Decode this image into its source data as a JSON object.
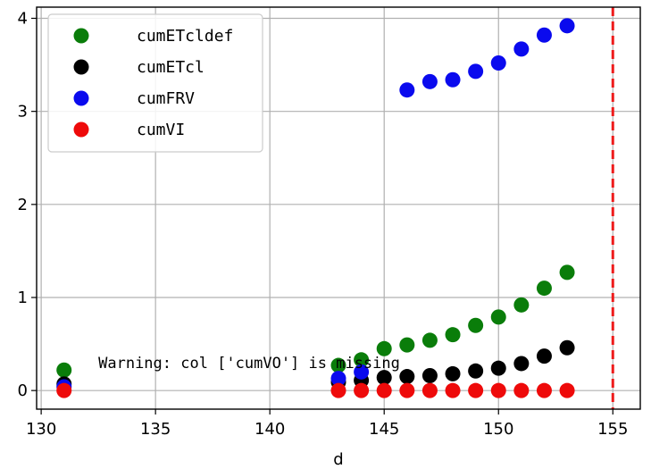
{
  "chart_data": {
    "type": "scatter",
    "title": "",
    "xlabel": "d",
    "ylabel": "",
    "xlim": [
      129.8,
      156.2
    ],
    "ylim": [
      -0.2,
      4.12
    ],
    "xticks": [
      130,
      135,
      140,
      145,
      150,
      155
    ],
    "yticks": [
      0,
      1,
      2,
      3,
      4
    ],
    "grid": true,
    "legend_position": "top-left",
    "vline": {
      "x": 155,
      "color": "#ee1c1c",
      "style": "dashed"
    },
    "annotation": {
      "text": "Warning: col ['cumVO'] is missing",
      "x": 132.5,
      "y": 0.3
    },
    "series": [
      {
        "name": "cumETcldef",
        "color": "#0a7d0a",
        "x": [
          131,
          143,
          144,
          145,
          146,
          147,
          148,
          149,
          150,
          151,
          152,
          153
        ],
        "values": [
          0.22,
          0.27,
          0.33,
          0.45,
          0.49,
          0.54,
          0.6,
          0.7,
          0.79,
          0.92,
          1.1,
          1.27
        ]
      },
      {
        "name": "cumETcl",
        "color": "#000000",
        "x": [
          131,
          143,
          144,
          145,
          146,
          147,
          148,
          149,
          150,
          151,
          152,
          153
        ],
        "values": [
          0.07,
          0.09,
          0.11,
          0.14,
          0.15,
          0.16,
          0.18,
          0.21,
          0.24,
          0.29,
          0.37,
          0.46
        ]
      },
      {
        "name": "cumFRV",
        "color": "#0a0aee",
        "x": [
          131,
          143,
          144,
          146,
          147,
          148,
          149,
          150,
          151,
          152,
          153
        ],
        "values": [
          0.04,
          0.13,
          0.2,
          3.23,
          3.32,
          3.34,
          3.43,
          3.52,
          3.67,
          3.82,
          3.92
        ]
      },
      {
        "name": "cumVI",
        "color": "#ee0a0a",
        "x": [
          131,
          143,
          144,
          145,
          146,
          147,
          148,
          149,
          150,
          151,
          152,
          153
        ],
        "values": [
          0.0,
          0.0,
          0.0,
          0.0,
          0.0,
          0.0,
          0.0,
          0.0,
          0.0,
          0.0,
          0.0,
          0.0
        ]
      }
    ]
  }
}
